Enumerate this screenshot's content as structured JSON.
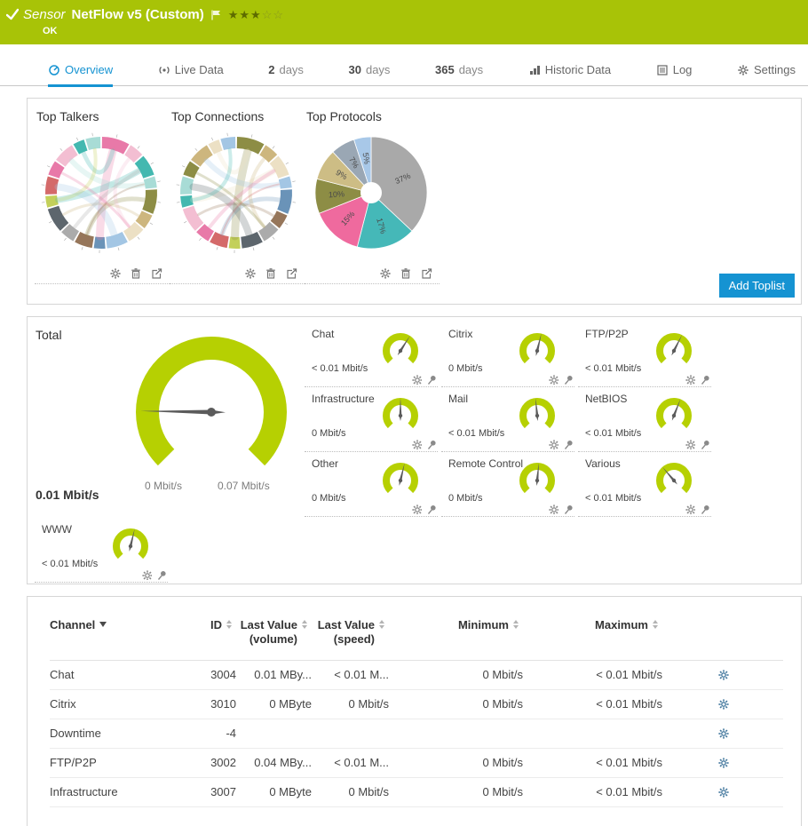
{
  "ui_colors": {
    "green": "#a8c307",
    "accent_blue": "#1593d2",
    "gauge": "#b6d002"
  },
  "header": {
    "kind": "Sensor",
    "title": "NetFlow v5 (Custom)",
    "status": "OK",
    "stars": {
      "filled": 3,
      "empty": 2
    }
  },
  "tabs": [
    {
      "id": "overview",
      "label": "Overview",
      "icon": "overview-icon",
      "active": true
    },
    {
      "id": "live-data",
      "label": "Live Data",
      "icon": "live-data-icon"
    },
    {
      "id": "2-days",
      "num": "2",
      "label": "days"
    },
    {
      "id": "30-days",
      "num": "30",
      "label": "days"
    },
    {
      "id": "365-days",
      "num": "365",
      "label": "days"
    },
    {
      "id": "historic-data",
      "label": "Historic Data",
      "icon": "historic-data-icon"
    },
    {
      "id": "log",
      "label": "Log",
      "icon": "log-icon"
    },
    {
      "id": "settings",
      "label": "Settings",
      "icon": "settings-icon"
    }
  ],
  "toplists": {
    "add_button": "Add Toplist",
    "items": [
      {
        "title": "Top Talkers",
        "type": "chord"
      },
      {
        "title": "Top Connections",
        "type": "chord"
      },
      {
        "title": "Top Protocols",
        "type": "pie"
      }
    ],
    "ring": {
      "palette": [
        "#e879a8",
        "#f3bed2",
        "#43b8b0",
        "#a8dcd6",
        "#8d8d45",
        "#cdb67e",
        "#ece0c4",
        "#a3c6e4",
        "#6a93b8",
        "#96765a",
        "#ababab",
        "#5d666d",
        "#c3d05a",
        "#d46a6a"
      ],
      "segments": [
        9,
        5,
        7,
        4,
        8,
        5,
        6,
        7,
        4,
        6,
        5,
        8,
        4,
        6,
        5,
        7,
        4,
        5
      ],
      "chords": [
        [
          0,
          8,
          9
        ],
        [
          2,
          12,
          7
        ],
        [
          4,
          9,
          5
        ],
        [
          1,
          6,
          4
        ],
        [
          3,
          15,
          6
        ],
        [
          5,
          11,
          3
        ],
        [
          7,
          13,
          8
        ],
        [
          10,
          2,
          4
        ],
        [
          14,
          6,
          3
        ],
        [
          16,
          0,
          5
        ],
        [
          9,
          3,
          2
        ],
        [
          12,
          17,
          4
        ]
      ]
    }
  },
  "chart_data": [
    {
      "type": "pie",
      "title": "Top Protocols",
      "labels": [
        "37%",
        "17%",
        "15%",
        "10%",
        "9%",
        "7%",
        "5%"
      ],
      "values": [
        37,
        17,
        15,
        10,
        9,
        7,
        5
      ],
      "colors": [
        "#a9a9a9",
        "#45b8b8",
        "#ef6a9e",
        "#8d8d45",
        "#cdbd85",
        "#9aa7b4",
        "#a8c8e8"
      ],
      "legend_position": "none",
      "donut_hole": true
    }
  ],
  "gauges": {
    "total": {
      "label": "Total",
      "value": "0.01 Mbit/s",
      "scale_min": "0 Mbit/s",
      "scale_max": "0.07 Mbit/s",
      "fraction": 0.17
    },
    "channels": [
      {
        "label": "Chat",
        "value": "< 0.01 Mbit/s",
        "needle": 0.62
      },
      {
        "label": "Citrix",
        "value": "0 Mbit/s",
        "needle": 0.55
      },
      {
        "label": "FTP/P2P",
        "value": "< 0.01 Mbit/s",
        "needle": 0.6
      },
      {
        "label": "Infrastructure",
        "value": "0 Mbit/s",
        "needle": 0.5
      },
      {
        "label": "Mail",
        "value": "< 0.01 Mbit/s",
        "needle": 0.48
      },
      {
        "label": "NetBIOS",
        "value": "< 0.01 Mbit/s",
        "needle": 0.58
      },
      {
        "label": "Other",
        "value": "0 Mbit/s",
        "needle": 0.55
      },
      {
        "label": "Remote Control",
        "value": "0 Mbit/s",
        "needle": 0.52
      },
      {
        "label": "Various",
        "value": "< 0.01 Mbit/s",
        "needle": 0.35
      },
      {
        "label": "WWW",
        "value": "< 0.01 Mbit/s",
        "needle": 0.55
      }
    ]
  },
  "table": {
    "columns": [
      {
        "id": "channel",
        "line1": "Channel",
        "sorted": true,
        "align": "left"
      },
      {
        "id": "id",
        "line1": "ID",
        "align": "right"
      },
      {
        "id": "last-value-volume",
        "line1": "Last Value",
        "line2": "(volume)",
        "align": "right"
      },
      {
        "id": "last-value-speed",
        "line1": "Last Value",
        "line2": "(speed)",
        "align": "right"
      },
      {
        "id": "minimum",
        "line1": "Minimum",
        "align": "right"
      },
      {
        "id": "maximum",
        "line1": "Maximum",
        "align": "right"
      }
    ],
    "rows": [
      {
        "cells": [
          "Chat",
          "3004",
          "0.01 MBy...",
          "< 0.01 M...",
          "0 Mbit/s",
          "< 0.01 Mbit/s"
        ]
      },
      {
        "cells": [
          "Citrix",
          "3010",
          "0 MByte",
          "0 Mbit/s",
          "0 Mbit/s",
          "< 0.01 Mbit/s"
        ]
      },
      {
        "cells": [
          "Downtime",
          "-4",
          "",
          "",
          "",
          ""
        ]
      },
      {
        "cells": [
          "FTP/P2P",
          "3002",
          "0.04 MBy...",
          "< 0.01 M...",
          "0 Mbit/s",
          "< 0.01 Mbit/s"
        ]
      },
      {
        "cells": [
          "Infrastructure",
          "3007",
          "0 MByte",
          "0 Mbit/s",
          "0 Mbit/s",
          "< 0.01 Mbit/s"
        ]
      }
    ]
  }
}
